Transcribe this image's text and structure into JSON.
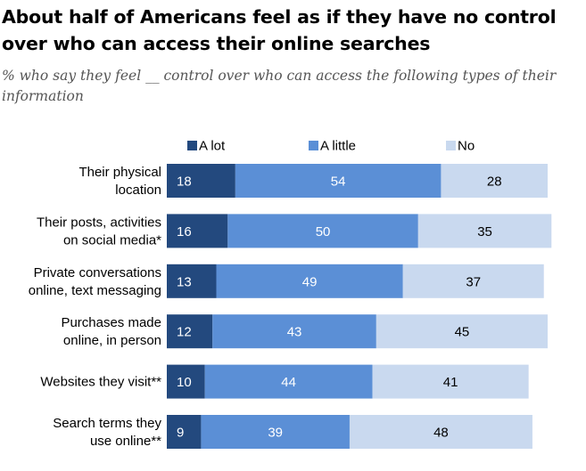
{
  "title": "About half of Americans feel as if they have no control over who can access their online searches",
  "subtitle": "% who say they feel __ control over who can access the following types of their information",
  "colors": {
    "a_lot": "#23497e",
    "a_little": "#5b8fd6",
    "no": "#c9d9ef"
  },
  "chart_data": {
    "type": "bar",
    "orientation": "horizontal",
    "stacked": true,
    "categories": [
      [
        "Their physical",
        "location"
      ],
      [
        "Their posts, activities",
        "on social media*"
      ],
      [
        "Private conversations",
        "online, text messaging"
      ],
      [
        "Purchases made",
        "online, in person"
      ],
      [
        "Websites they visit**"
      ],
      [
        "Search terms they",
        "use online**"
      ]
    ],
    "series": [
      {
        "name": "A lot",
        "values": [
          18,
          16,
          13,
          12,
          10,
          9
        ]
      },
      {
        "name": "A little",
        "values": [
          54,
          50,
          49,
          43,
          44,
          39
        ]
      },
      {
        "name": "No",
        "values": [
          28,
          35,
          37,
          45,
          41,
          48
        ]
      }
    ],
    "legend_position": "top",
    "grid": false,
    "xlim": [
      0,
      100
    ]
  }
}
